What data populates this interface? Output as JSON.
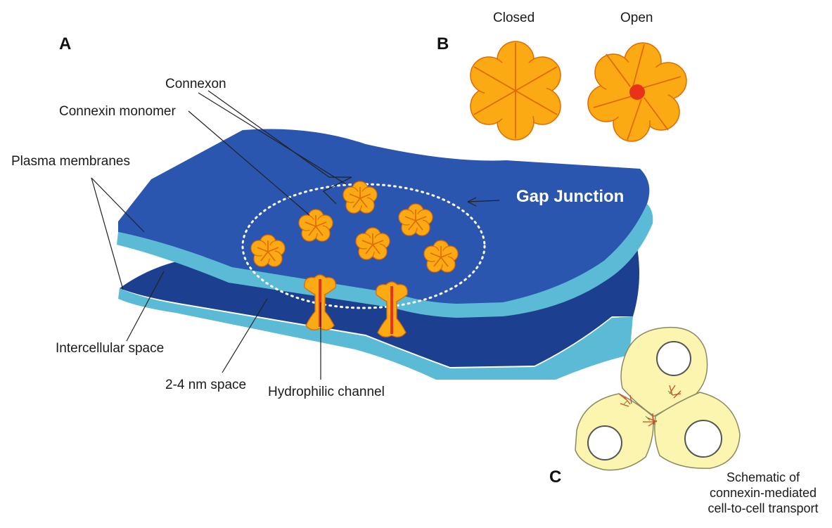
{
  "panels": {
    "a": "A",
    "b": "B",
    "c": "C"
  },
  "labels": {
    "connexon": "Connexon",
    "connexin_monomer": "Connexin monomer",
    "plasma_membranes": "Plasma membranes",
    "gap_junction": "Gap Junction",
    "intercellular_space": "Intercellular space",
    "nm_space": "2-4 nm space",
    "hydrophilic_channel": "Hydrophilic channel",
    "closed": "Closed",
    "open": "Open"
  },
  "caption_c": {
    "line1": "Schematic of",
    "line2": "connexin-mediated",
    "line3": "cell-to-cell transport"
  },
  "colors": {
    "membrane_top": "#2a56b0",
    "membrane_edge": "#5bbad6",
    "membrane_lower": "#1d3f8f",
    "connexin_fill": "#fbaa14",
    "connexin_stroke": "#e06a00",
    "pore_open": "#e8321a",
    "cell_fill": "#fbf5b0",
    "cell_stroke": "#8a8a60"
  }
}
